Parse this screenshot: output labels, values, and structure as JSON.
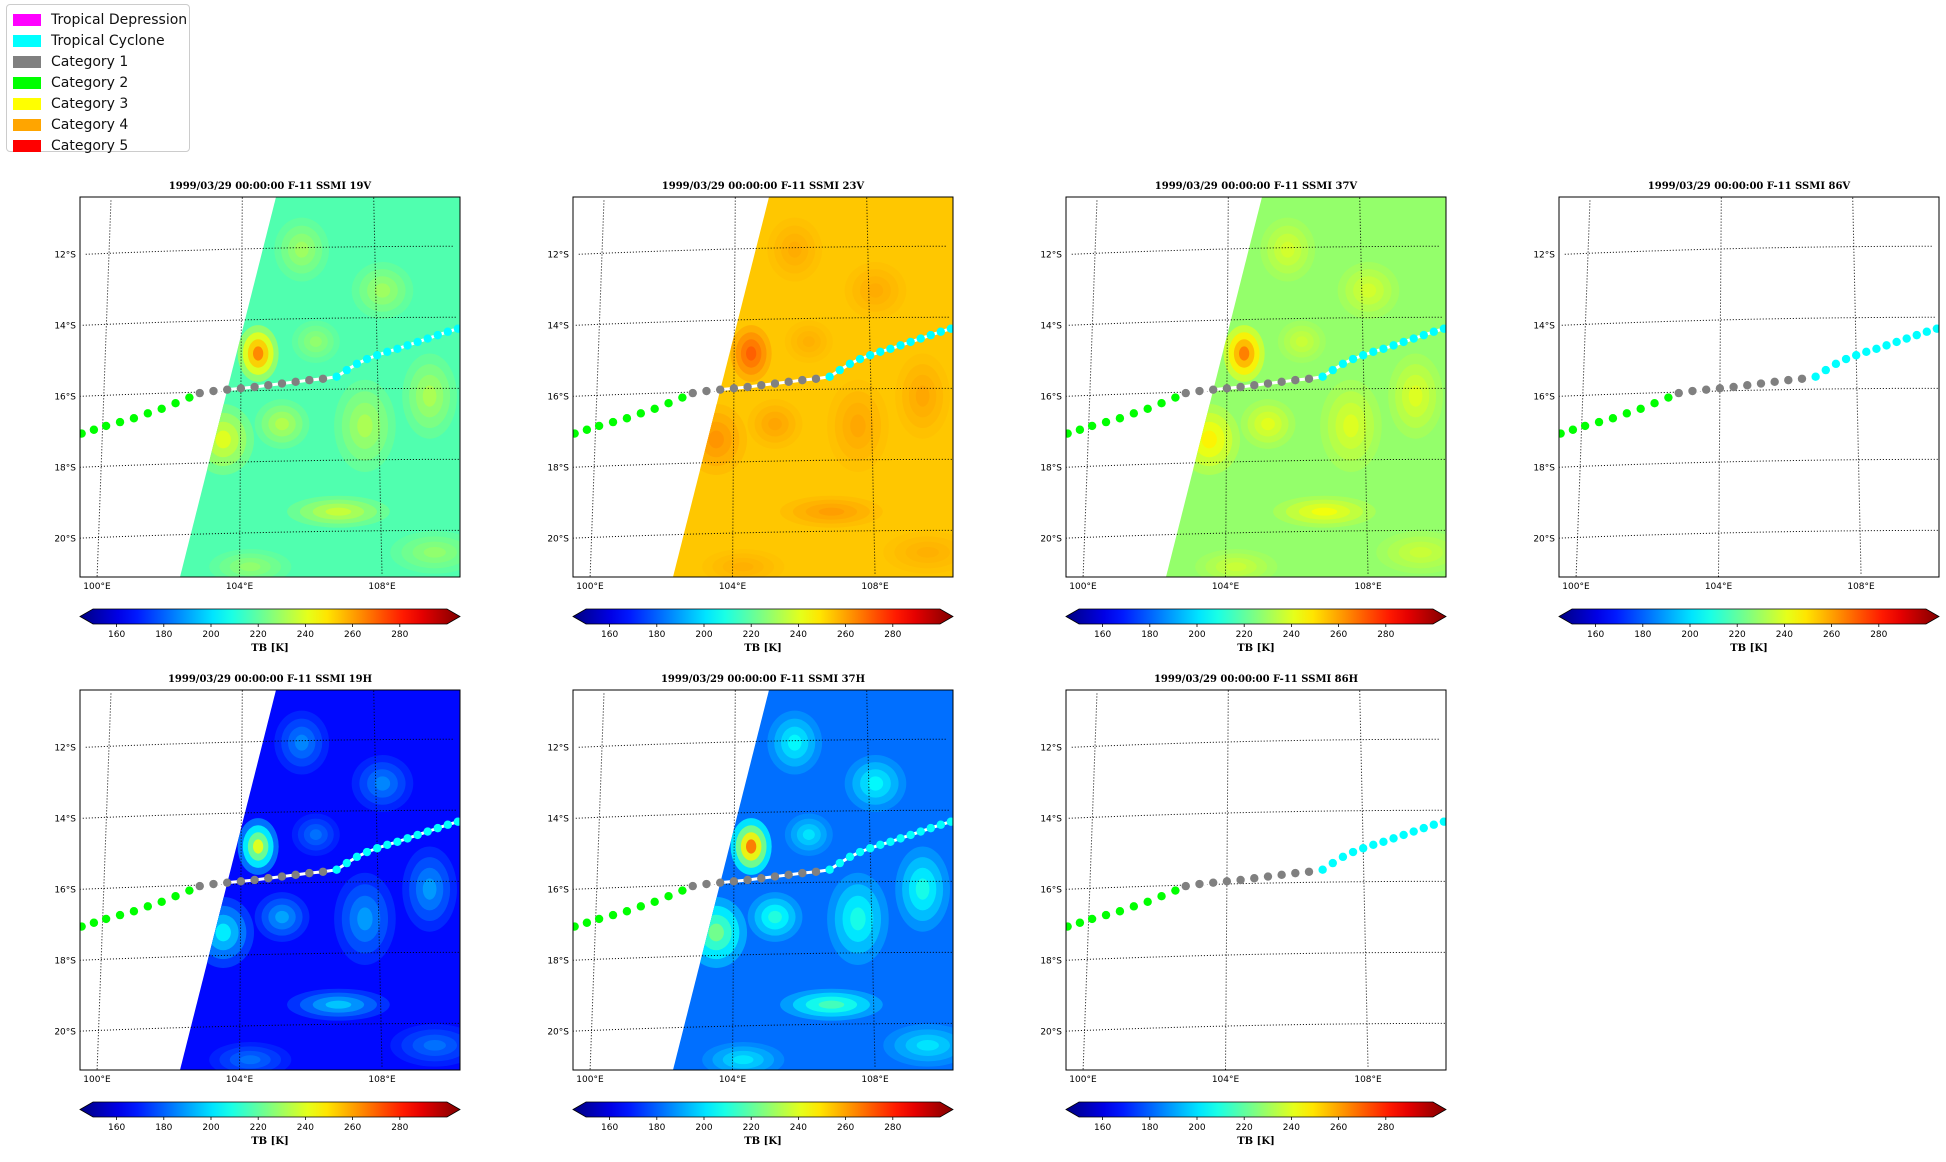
{
  "legend": {
    "items": [
      {
        "label": "Tropical Depression",
        "color": "#ff00ff"
      },
      {
        "label": "Tropical Cyclone",
        "color": "#00ffff"
      },
      {
        "label": "Category 1",
        "color": "#808080"
      },
      {
        "label": "Category 2",
        "color": "#00ff00"
      },
      {
        "label": "Category 3",
        "color": "#ffff00"
      },
      {
        "label": "Category 4",
        "color": "#ffa500"
      },
      {
        "label": "Category 5",
        "color": "#ff0000"
      }
    ]
  },
  "colorbar": {
    "ticks": [
      "160",
      "180",
      "200",
      "220",
      "240",
      "260",
      "280"
    ],
    "label": "TB [K]",
    "range": [
      150,
      300
    ],
    "colormap": "jet"
  },
  "map": {
    "lat_labels": [
      "12°S",
      "14°S",
      "16°S",
      "18°S",
      "20°S"
    ],
    "lon_labels": [
      "100°E",
      "104°E",
      "108°E"
    ]
  },
  "chart_data": [
    {
      "type": "heatmap",
      "title": "1999/03/29 00:00:00  F-11 SSMI 19V",
      "field": "19V",
      "has_data": true
    },
    {
      "type": "heatmap",
      "title": "1999/03/29 00:00:00  F-11 SSMI 23V",
      "field": "23V",
      "has_data": true
    },
    {
      "type": "heatmap",
      "title": "1999/03/29 00:00:00  F-11 SSMI 37V",
      "field": "37V",
      "has_data": true
    },
    {
      "type": "heatmap",
      "title": "1999/03/29 00:00:00  F-11 SSMI 86V",
      "field": "86V",
      "has_data": false
    },
    {
      "type": "heatmap",
      "title": "1999/03/29 00:00:00  F-11 SSMI 19H",
      "field": "19H",
      "has_data": true
    },
    {
      "type": "heatmap",
      "title": "1999/03/29 00:00:00  F-11 SSMI 37H",
      "field": "37H",
      "has_data": true
    },
    {
      "type": "heatmap",
      "title": "1999/03/29 00:00:00  F-11 SSMI 86H",
      "field": "86H",
      "has_data": false
    }
  ],
  "track": {
    "points": [
      {
        "lon": 99.4,
        "lat": -17.05,
        "cat": "Category 2"
      },
      {
        "lon": 99.75,
        "lat": -16.95,
        "cat": "Category 2"
      },
      {
        "lon": 100.1,
        "lat": -16.85,
        "cat": "Category 2"
      },
      {
        "lon": 100.5,
        "lat": -16.75,
        "cat": "Category 2"
      },
      {
        "lon": 100.9,
        "lat": -16.65,
        "cat": "Category 2"
      },
      {
        "lon": 101.3,
        "lat": -16.52,
        "cat": "Category 2"
      },
      {
        "lon": 101.7,
        "lat": -16.4,
        "cat": "Category 2"
      },
      {
        "lon": 102.1,
        "lat": -16.25,
        "cat": "Category 2"
      },
      {
        "lon": 102.5,
        "lat": -16.1,
        "cat": "Category 2"
      },
      {
        "lon": 102.8,
        "lat": -15.98,
        "cat": "Category 1"
      },
      {
        "lon": 103.2,
        "lat": -15.93,
        "cat": "Category 1"
      },
      {
        "lon": 103.6,
        "lat": -15.9,
        "cat": "Category 1"
      },
      {
        "lon": 104.0,
        "lat": -15.87,
        "cat": "Category 1"
      },
      {
        "lon": 104.4,
        "lat": -15.84,
        "cat": "Category 1"
      },
      {
        "lon": 104.8,
        "lat": -15.8,
        "cat": "Category 1"
      },
      {
        "lon": 105.2,
        "lat": -15.76,
        "cat": "Category 1"
      },
      {
        "lon": 105.6,
        "lat": -15.72,
        "cat": "Category 1"
      },
      {
        "lon": 106.0,
        "lat": -15.68,
        "cat": "Category 1"
      },
      {
        "lon": 106.4,
        "lat": -15.65,
        "cat": "Category 1"
      },
      {
        "lon": 106.8,
        "lat": -15.6,
        "cat": "Tropical Cyclone"
      },
      {
        "lon": 107.1,
        "lat": -15.42,
        "cat": "Tropical Cyclone"
      },
      {
        "lon": 107.4,
        "lat": -15.25,
        "cat": "Tropical Cyclone"
      },
      {
        "lon": 107.7,
        "lat": -15.12,
        "cat": "Tropical Cyclone"
      },
      {
        "lon": 108.0,
        "lat": -15.02,
        "cat": "Tropical Cyclone"
      },
      {
        "lon": 108.3,
        "lat": -14.93,
        "cat": "Tropical Cyclone"
      },
      {
        "lon": 108.6,
        "lat": -14.85,
        "cat": "Tropical Cyclone"
      },
      {
        "lon": 108.9,
        "lat": -14.76,
        "cat": "Tropical Cyclone"
      },
      {
        "lon": 109.2,
        "lat": -14.67,
        "cat": "Tropical Cyclone"
      },
      {
        "lon": 109.5,
        "lat": -14.58,
        "cat": "Tropical Cyclone"
      },
      {
        "lon": 109.8,
        "lat": -14.49,
        "cat": "Tropical Cyclone"
      },
      {
        "lon": 110.1,
        "lat": -14.4,
        "cat": "Tropical Cyclone"
      },
      {
        "lon": 110.4,
        "lat": -14.32,
        "cat": "Tropical Cyclone"
      }
    ]
  }
}
